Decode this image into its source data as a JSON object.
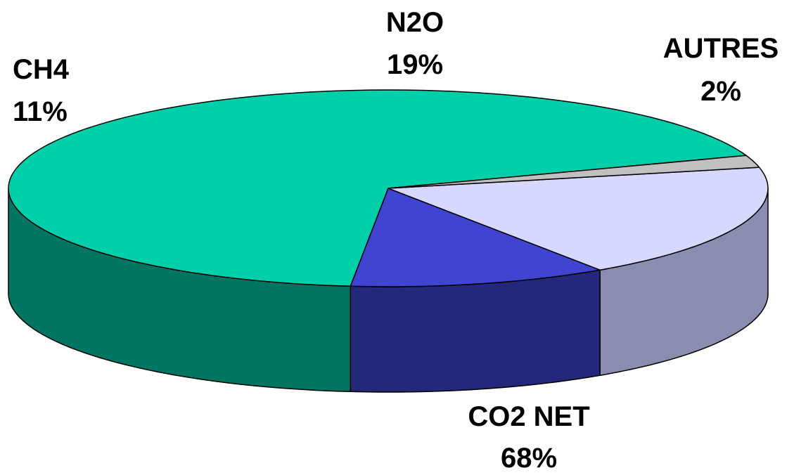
{
  "chart_data": {
    "type": "pie",
    "style": "3d",
    "start_angle_deg": 19.5,
    "direction": "counterclockwise",
    "slices": [
      {
        "name": "CO2 NET",
        "value": 68,
        "label": "68%",
        "color": "#00CFAA",
        "side_color": "#007562"
      },
      {
        "name": "CH4",
        "value": 11,
        "label": "11%",
        "color": "#3F44D1",
        "side_color": "#24287A"
      },
      {
        "name": "N2O",
        "value": 19,
        "label": "19%",
        "color": "#D6D8FF",
        "side_color": "#8A8CB0"
      },
      {
        "name": "AUTRES",
        "value": 2,
        "label": "2%",
        "color": "#C0C0C0",
        "side_color": "#7A7A7A"
      }
    ]
  }
}
